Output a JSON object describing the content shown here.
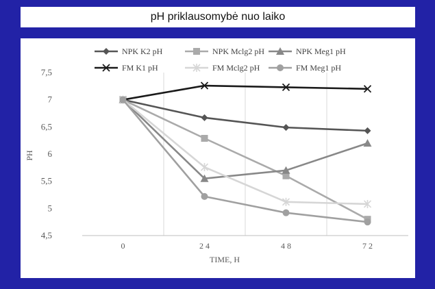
{
  "title": "pH priklausomybė nuo laiko",
  "chart_data": {
    "type": "line",
    "title": "pH priklausomybė nuo laiko",
    "xlabel": "TIME, H",
    "ylabel": "PH",
    "categories": [
      "0",
      "2 4",
      "4 8",
      "7 2"
    ],
    "ylim": [
      4.5,
      7.5
    ],
    "yticks": [
      "4,5",
      "5",
      "5,5",
      "6",
      "6,5",
      "7",
      "7,5"
    ],
    "grid": "vertical",
    "legend": "top",
    "series": [
      {
        "name": "NPK K2 pH",
        "values": [
          7.0,
          6.67,
          6.49,
          6.43
        ],
        "color": "#555555",
        "marker": "diamond"
      },
      {
        "name": "NPK Mclg2 pH",
        "values": [
          7.0,
          6.29,
          5.6,
          4.8
        ],
        "color": "#aaaaaa",
        "marker": "square"
      },
      {
        "name": "NPK Meg1 pH",
        "values": [
          7.0,
          5.55,
          5.7,
          6.2
        ],
        "color": "#888888",
        "marker": "triangle"
      },
      {
        "name": "FM K1 pH",
        "values": [
          7.0,
          7.26,
          7.23,
          7.2
        ],
        "color": "#1a1a1a",
        "marker": "x"
      },
      {
        "name": "FM Mclg2 pH",
        "values": [
          7.0,
          5.76,
          5.12,
          5.08
        ],
        "color": "#d6d6d6",
        "marker": "star"
      },
      {
        "name": "FM Meg1 pH",
        "values": [
          7.0,
          5.22,
          4.92,
          4.75
        ],
        "color": "#a0a0a0",
        "marker": "circle"
      }
    ]
  }
}
